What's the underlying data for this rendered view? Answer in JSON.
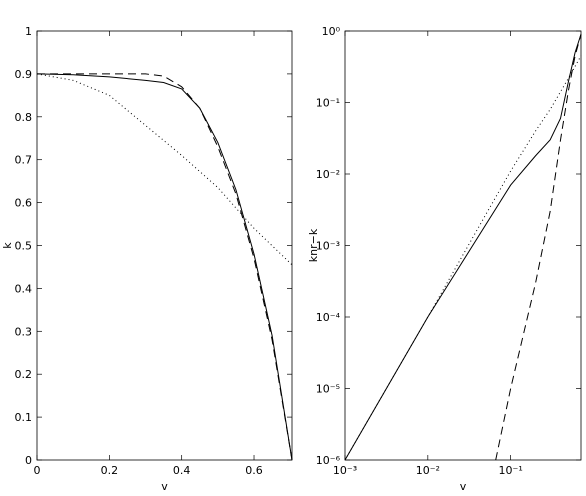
{
  "chart_data": [
    {
      "type": "line",
      "xlabel": "v",
      "ylabel": "k",
      "xlim": [
        0,
        0.705
      ],
      "ylim": [
        0,
        1
      ],
      "xticks": [
        0,
        0.2,
        0.4,
        0.6
      ],
      "yticks": [
        0,
        0.1,
        0.2,
        0.3,
        0.4,
        0.5,
        0.6,
        0.7,
        0.8,
        0.9,
        1
      ],
      "series": [
        {
          "color": "#000000",
          "style": "solid",
          "x": [
            0,
            0.1,
            0.2,
            0.3,
            0.35,
            0.4,
            0.45,
            0.5,
            0.55,
            0.6,
            0.65,
            0.705
          ],
          "values": [
            0.9,
            0.898,
            0.893,
            0.885,
            0.88,
            0.865,
            0.82,
            0.74,
            0.63,
            0.48,
            0.29,
            0
          ]
        },
        {
          "color": "#000000",
          "style": "dashed",
          "x": [
            0,
            0.1,
            0.2,
            0.3,
            0.35,
            0.4,
            0.45,
            0.5,
            0.55,
            0.6,
            0.65,
            0.705
          ],
          "values": [
            0.9,
            0.9,
            0.9,
            0.9,
            0.895,
            0.87,
            0.82,
            0.73,
            0.62,
            0.47,
            0.28,
            0
          ]
        },
        {
          "color": "#000000",
          "style": "dotted",
          "x": [
            0,
            0.1,
            0.2,
            0.3,
            0.4,
            0.5,
            0.6,
            0.705
          ],
          "values": [
            0.9,
            0.885,
            0.85,
            0.78,
            0.71,
            0.635,
            0.54,
            0.455
          ]
        }
      ]
    },
    {
      "type": "line",
      "xlabel": "v",
      "ylabel": "knr−k",
      "log": true,
      "xlim": [
        0.001,
        0.707
      ],
      "ylim": [
        1e-06,
        1
      ],
      "xticks": [
        {
          "value": 0.001,
          "label": "10⁻³"
        },
        {
          "value": 0.01,
          "label": "10⁻²"
        },
        {
          "value": 0.1,
          "label": "10⁻¹"
        }
      ],
      "yticks": [
        {
          "value": 1e-06,
          "label": "10⁻⁶"
        },
        {
          "value": 1e-05,
          "label": "10⁻⁵"
        },
        {
          "value": 0.0001,
          "label": "10⁻⁴"
        },
        {
          "value": 0.001,
          "label": "10⁻³"
        },
        {
          "value": 0.01,
          "label": "10⁻²"
        },
        {
          "value": 0.1,
          "label": "10⁻¹"
        },
        {
          "value": 1,
          "label": "10⁰"
        }
      ],
      "series": [
        {
          "color": "#000000",
          "style": "solid",
          "x": [
            0.001,
            0.01,
            0.1,
            0.2,
            0.3,
            0.4,
            0.5,
            0.6,
            0.707
          ],
          "values": [
            1e-06,
            0.0001,
            0.007,
            0.018,
            0.03,
            0.06,
            0.2,
            0.5,
            0.9
          ]
        },
        {
          "color": "#000000",
          "style": "dashed",
          "x": [
            0.066,
            0.1,
            0.2,
            0.3,
            0.4,
            0.5,
            0.6,
            0.707
          ],
          "values": [
            1e-06,
            1e-05,
            0.0003,
            0.003,
            0.03,
            0.15,
            0.45,
            0.9
          ]
        },
        {
          "color": "#000000",
          "style": "dotted",
          "x": [
            0.001,
            0.01,
            0.05,
            0.1,
            0.2,
            0.3,
            0.5,
            0.707
          ],
          "values": [
            1e-06,
            0.0001,
            0.0027,
            0.011,
            0.04,
            0.08,
            0.22,
            0.45
          ]
        }
      ]
    }
  ]
}
